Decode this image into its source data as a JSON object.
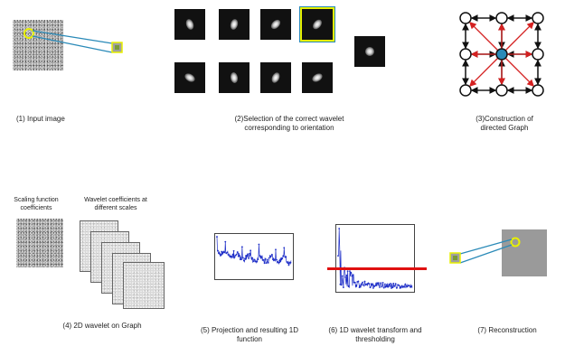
{
  "panels": {
    "p1": {
      "caption": "(1) Input image"
    },
    "p2": {
      "caption": "(2)Selection of the correct wavelet corresponding to orientation"
    },
    "p3": {
      "caption": "(3)Construction of directed Graph"
    },
    "p4": {
      "caption": "(4) 2D wavelet on Graph",
      "scaling_label": "Scaling function coefficients",
      "wavelet_label": "Wavelet coefficients at different scales"
    },
    "p5": {
      "caption": "(5) Projection and resulting 1D function"
    },
    "p6": {
      "caption": "(6) 1D wavelet transform and thresholding"
    },
    "p7": {
      "caption": "(7) Reconstruction"
    }
  },
  "colors": {
    "highlight_yellow": "#e8f000",
    "line_blue": "#2a8ab8",
    "graph_red": "#d42020",
    "center_node_blue": "#2a8ab8",
    "plot_blue": "#2030c8",
    "threshold_red": "#e01010"
  }
}
